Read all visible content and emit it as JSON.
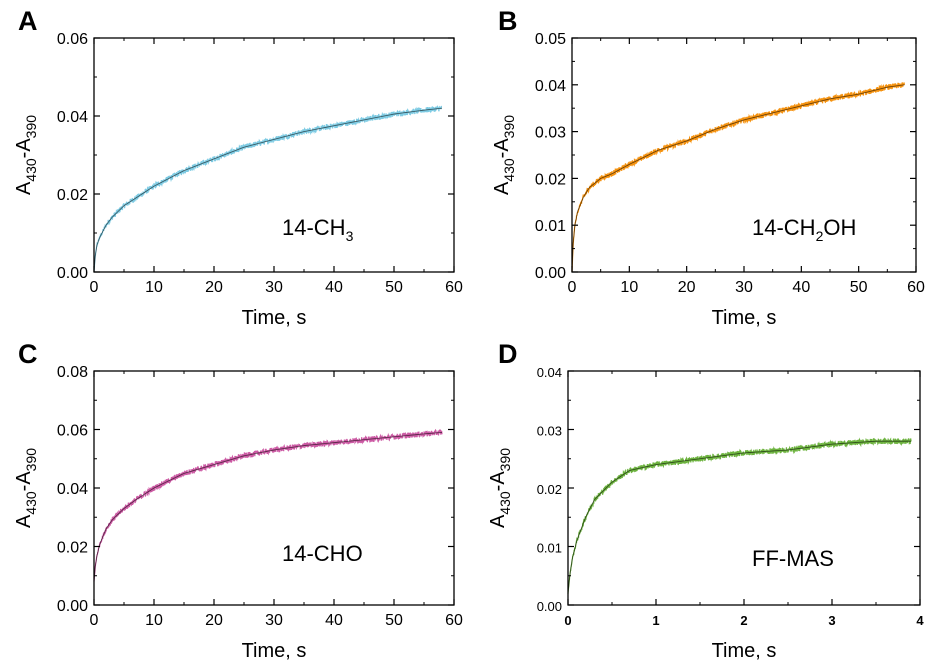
{
  "chart_data": [
    {
      "type": "line",
      "panel": "A",
      "annotation": "14-CH",
      "annotation_sub": "3",
      "annotation_tail": "",
      "xlabel": "Time, s",
      "ylabel": {
        "base": "A",
        "sub1": "430",
        "mid": "-A",
        "sub2": "390"
      },
      "xlim": [
        0,
        60
      ],
      "ylim": [
        0,
        0.06
      ],
      "xticks": [
        "0",
        "10",
        "20",
        "30",
        "40",
        "50",
        "60"
      ],
      "yticks": [
        "0.00",
        "0.02",
        "0.04",
        "0.06"
      ],
      "color": "#7ecbe3",
      "series": [
        {
          "x": [
            0,
            0.2,
            0.5,
            1,
            2,
            3,
            5,
            7,
            10,
            15,
            20,
            25,
            30,
            35,
            40,
            45,
            50,
            55,
            58
          ],
          "y": [
            0,
            0.004,
            0.007,
            0.009,
            0.012,
            0.014,
            0.017,
            0.019,
            0.022,
            0.026,
            0.029,
            0.032,
            0.034,
            0.036,
            0.0375,
            0.039,
            0.0405,
            0.0415,
            0.042
          ]
        }
      ]
    },
    {
      "type": "line",
      "panel": "B",
      "annotation": "14-CH",
      "annotation_sub": "2",
      "annotation_tail": "OH",
      "xlabel": "Time, s",
      "ylabel": {
        "base": "A",
        "sub1": "430",
        "mid": "-A",
        "sub2": "390"
      },
      "xlim": [
        0,
        60
      ],
      "ylim": [
        0,
        0.05
      ],
      "xticks": [
        "0",
        "10",
        "20",
        "30",
        "40",
        "50",
        "60"
      ],
      "yticks": [
        "0.00",
        "0.01",
        "0.02",
        "0.03",
        "0.04",
        "0.05"
      ],
      "color": "#f5920f",
      "series": [
        {
          "x": [
            0,
            0.2,
            0.5,
            1,
            2,
            3,
            5,
            7,
            10,
            15,
            20,
            25,
            30,
            35,
            40,
            45,
            50,
            55,
            58
          ],
          "y": [
            0,
            0.006,
            0.01,
            0.013,
            0.016,
            0.018,
            0.02,
            0.021,
            0.023,
            0.026,
            0.028,
            0.0305,
            0.0325,
            0.034,
            0.0355,
            0.037,
            0.038,
            0.0395,
            0.04
          ]
        }
      ]
    },
    {
      "type": "line",
      "panel": "C",
      "annotation": "14-CHO",
      "annotation_sub": "",
      "annotation_tail": "",
      "xlabel": "Time, s",
      "ylabel": {
        "base": "A",
        "sub1": "430",
        "mid": "-A",
        "sub2": "390"
      },
      "xlim": [
        0,
        60
      ],
      "ylim": [
        0,
        0.08
      ],
      "xticks": [
        "0",
        "10",
        "20",
        "30",
        "40",
        "50",
        "60"
      ],
      "yticks": [
        "0.00",
        "0.02",
        "0.04",
        "0.06",
        "0.08"
      ],
      "color": "#cc5aa4",
      "series": [
        {
          "x": [
            0,
            0.2,
            0.5,
            1,
            2,
            3,
            5,
            7,
            10,
            15,
            20,
            25,
            30,
            35,
            40,
            45,
            50,
            55,
            58
          ],
          "y": [
            0.008,
            0.013,
            0.017,
            0.021,
            0.026,
            0.029,
            0.033,
            0.036,
            0.04,
            0.045,
            0.048,
            0.051,
            0.053,
            0.0545,
            0.0555,
            0.0565,
            0.0575,
            0.0585,
            0.059
          ]
        }
      ]
    },
    {
      "type": "line",
      "panel": "D",
      "annotation": "FF-MAS",
      "annotation_sub": "",
      "annotation_tail": "",
      "xlabel": "Time, s",
      "ylabel": {
        "base": "A",
        "sub1": "430",
        "mid": "-A",
        "sub2": "390"
      },
      "xlim": [
        0,
        4
      ],
      "ylim": [
        0,
        0.04
      ],
      "xticks": [
        "0",
        "1",
        "2",
        "3",
        "4"
      ],
      "yticks": [
        "0.00",
        "0.01",
        "0.02",
        "0.03",
        "0.04"
      ],
      "color": "#6db33f",
      "series": [
        {
          "x": [
            0,
            0.02,
            0.05,
            0.1,
            0.2,
            0.3,
            0.5,
            0.7,
            1,
            1.5,
            2,
            2.5,
            3,
            3.5,
            3.9
          ],
          "y": [
            0.002,
            0.005,
            0.008,
            0.011,
            0.015,
            0.018,
            0.021,
            0.023,
            0.024,
            0.025,
            0.026,
            0.0265,
            0.0275,
            0.028,
            0.028
          ]
        }
      ]
    }
  ]
}
